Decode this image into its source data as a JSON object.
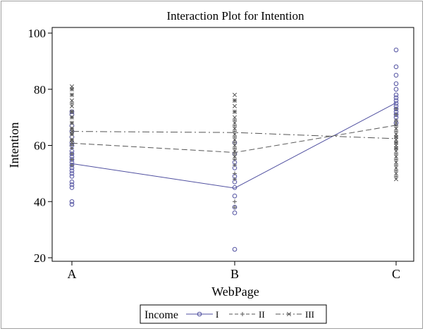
{
  "chart_data": {
    "type": "line",
    "title": "Interaction Plot for Intention",
    "xlabel": "WebPage",
    "ylabel": "Intention",
    "categories": [
      "A",
      "B",
      "C"
    ],
    "ylim": [
      20,
      100
    ],
    "yticks": [
      20,
      40,
      60,
      80,
      100
    ],
    "grid": false,
    "legend": {
      "title": "Income",
      "placement": "bottom",
      "entries": [
        "I",
        "II",
        "III"
      ]
    },
    "series": [
      {
        "name": "I",
        "marker": "circle",
        "line": "solid",
        "color": "#5050a0",
        "means": [
          53.5,
          44.8,
          75.2
        ],
        "points": {
          "A": [
            72,
            71,
            67,
            65,
            63,
            61,
            60,
            58,
            57,
            56,
            55,
            54,
            53,
            52,
            51,
            50,
            49,
            47,
            46,
            45,
            40,
            39
          ],
          "B": [
            61,
            57,
            54,
            52,
            49,
            47,
            45,
            42,
            38,
            36,
            23
          ],
          "C": [
            94,
            88,
            85,
            82,
            80,
            78,
            77,
            76,
            75,
            74,
            73,
            72,
            71,
            70,
            68
          ]
        }
      },
      {
        "name": "II",
        "marker": "plus",
        "line": "dash",
        "color": "#555555",
        "means": [
          60.8,
          57.5,
          67.2
        ],
        "points": {
          "A": [
            80,
            78,
            75,
            72,
            70,
            68,
            66,
            64,
            62,
            60,
            59,
            57,
            55,
            53
          ],
          "B": [
            76,
            72,
            69,
            67,
            65,
            63,
            61,
            59,
            57,
            55,
            53,
            50,
            48,
            40,
            38
          ],
          "C": [
            73,
            71,
            69,
            67,
            65,
            63,
            61,
            59,
            57,
            55,
            53,
            51,
            49
          ]
        }
      },
      {
        "name": "III",
        "marker": "x",
        "line": "dashdot",
        "color": "#555555",
        "means": [
          65.0,
          64.6,
          62.4
        ],
        "points": {
          "A": [
            81,
            80,
            78,
            76,
            74,
            72,
            70,
            68,
            66,
            65,
            64,
            62,
            61
          ],
          "B": [
            78,
            76,
            74,
            72,
            70,
            68,
            66,
            64,
            62,
            60,
            58,
            56
          ],
          "C": [
            68,
            66,
            64,
            63,
            62,
            61,
            60,
            59,
            58,
            56,
            54,
            52,
            50,
            48
          ]
        }
      }
    ]
  }
}
